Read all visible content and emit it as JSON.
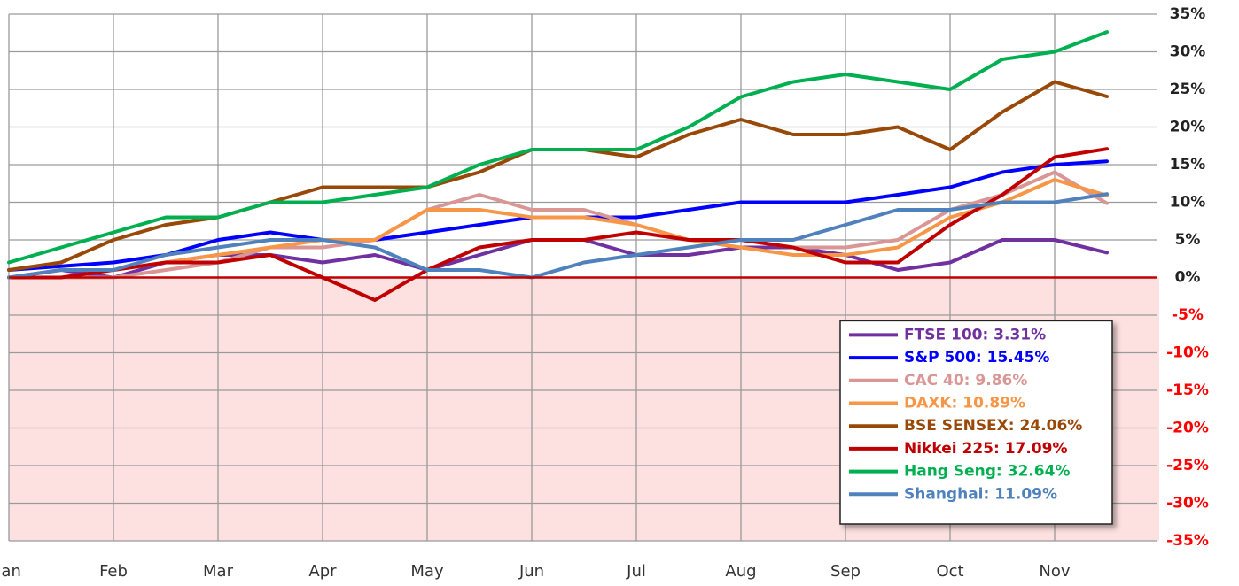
{
  "chart_data": {
    "type": "line",
    "x": [
      0,
      0.5,
      1,
      1.5,
      2,
      2.5,
      3,
      3.5,
      4,
      4.5,
      5,
      5.5,
      6,
      6.5,
      7,
      7.5,
      8,
      8.5,
      9,
      9.5,
      10,
      10.5
    ],
    "xlim": [
      0,
      11
    ],
    "xticks": [
      {
        "value": 0,
        "label": "Jan"
      },
      {
        "value": 1,
        "label": "Feb"
      },
      {
        "value": 2,
        "label": "Mar"
      },
      {
        "value": 3,
        "label": "Apr"
      },
      {
        "value": 4,
        "label": "May"
      },
      {
        "value": 5,
        "label": "Jun"
      },
      {
        "value": 6,
        "label": "Jul"
      },
      {
        "value": 7,
        "label": "Aug"
      },
      {
        "value": 8,
        "label": "Sep"
      },
      {
        "value": 9,
        "label": "Oct"
      },
      {
        "value": 10,
        "label": "Nov"
      }
    ],
    "ylim": [
      -35,
      35
    ],
    "yticks": [
      {
        "value": 35,
        "label": "35%"
      },
      {
        "value": 30,
        "label": "30%"
      },
      {
        "value": 25,
        "label": "25%"
      },
      {
        "value": 20,
        "label": "20%"
      },
      {
        "value": 15,
        "label": "15%"
      },
      {
        "value": 10,
        "label": "10%"
      },
      {
        "value": 5,
        "label": "5%"
      },
      {
        "value": 0,
        "label": "0%"
      },
      {
        "value": -5,
        "label": "-5%"
      },
      {
        "value": -10,
        "label": "-10%"
      },
      {
        "value": -15,
        "label": "-15%"
      },
      {
        "value": -20,
        "label": "-20%"
      },
      {
        "value": -25,
        "label": "-25%"
      },
      {
        "value": -30,
        "label": "-30%"
      },
      {
        "value": -35,
        "label": "-35%"
      }
    ],
    "grid": true,
    "legend": "lower right",
    "series": [
      {
        "name": "FTSE 100: 3.31%",
        "color": "#7030a0",
        "values": [
          0,
          1,
          0,
          2,
          3,
          3,
          2,
          3,
          1,
          3,
          5,
          5,
          3,
          3,
          4,
          4,
          3,
          1,
          2,
          5,
          5,
          3.31
        ]
      },
      {
        "name": "S&P 500: 15.45%",
        "color": "#0000ff",
        "values": [
          1,
          1.5,
          2,
          3,
          5,
          6,
          5,
          5,
          6,
          7,
          8,
          8,
          8,
          9,
          10,
          10,
          10,
          11,
          12,
          14,
          15,
          15.45
        ]
      },
      {
        "name": "CAC 40: 9.86%",
        "color": "#d99694",
        "values": [
          0,
          0,
          0,
          1,
          2,
          4,
          4,
          5,
          9,
          11,
          9,
          9,
          7,
          5,
          5,
          4,
          4,
          5,
          9,
          11,
          14,
          9.86
        ]
      },
      {
        "name": "DAXK: 10.89%",
        "color": "#f79646",
        "values": [
          0,
          1,
          1,
          2,
          3,
          4,
          5,
          5,
          9,
          9,
          8,
          8,
          7,
          5,
          4,
          3,
          3,
          4,
          8,
          10,
          13,
          10.89
        ]
      },
      {
        "name": "BSE SENSEX: 24.06%",
        "color": "#984807",
        "values": [
          1,
          2,
          5,
          7,
          8,
          10,
          12,
          12,
          12,
          14,
          17,
          17,
          16,
          19,
          21,
          19,
          19,
          20,
          17,
          22,
          26,
          24.06
        ]
      },
      {
        "name": "Nikkei 225: 17.09%",
        "color": "#c00000",
        "values": [
          0,
          0,
          1,
          2,
          2,
          3,
          0,
          -3,
          1,
          4,
          5,
          5,
          6,
          5,
          5,
          4,
          2,
          2,
          7,
          11,
          16,
          17.09
        ]
      },
      {
        "name": "Hang Seng: 32.64%",
        "color": "#00b050",
        "values": [
          2,
          4,
          6,
          8,
          8,
          10,
          10,
          11,
          12,
          15,
          17,
          17,
          17,
          20,
          24,
          26,
          27,
          26,
          25,
          29,
          30,
          32.64
        ]
      },
      {
        "name": "Shanghai: 11.09%",
        "color": "#4f81bd",
        "values": [
          0,
          1,
          1,
          3,
          4,
          5,
          5,
          4,
          1,
          1,
          0,
          2,
          3,
          4,
          5,
          5,
          7,
          9,
          9,
          10,
          10,
          11.09
        ]
      }
    ]
  }
}
